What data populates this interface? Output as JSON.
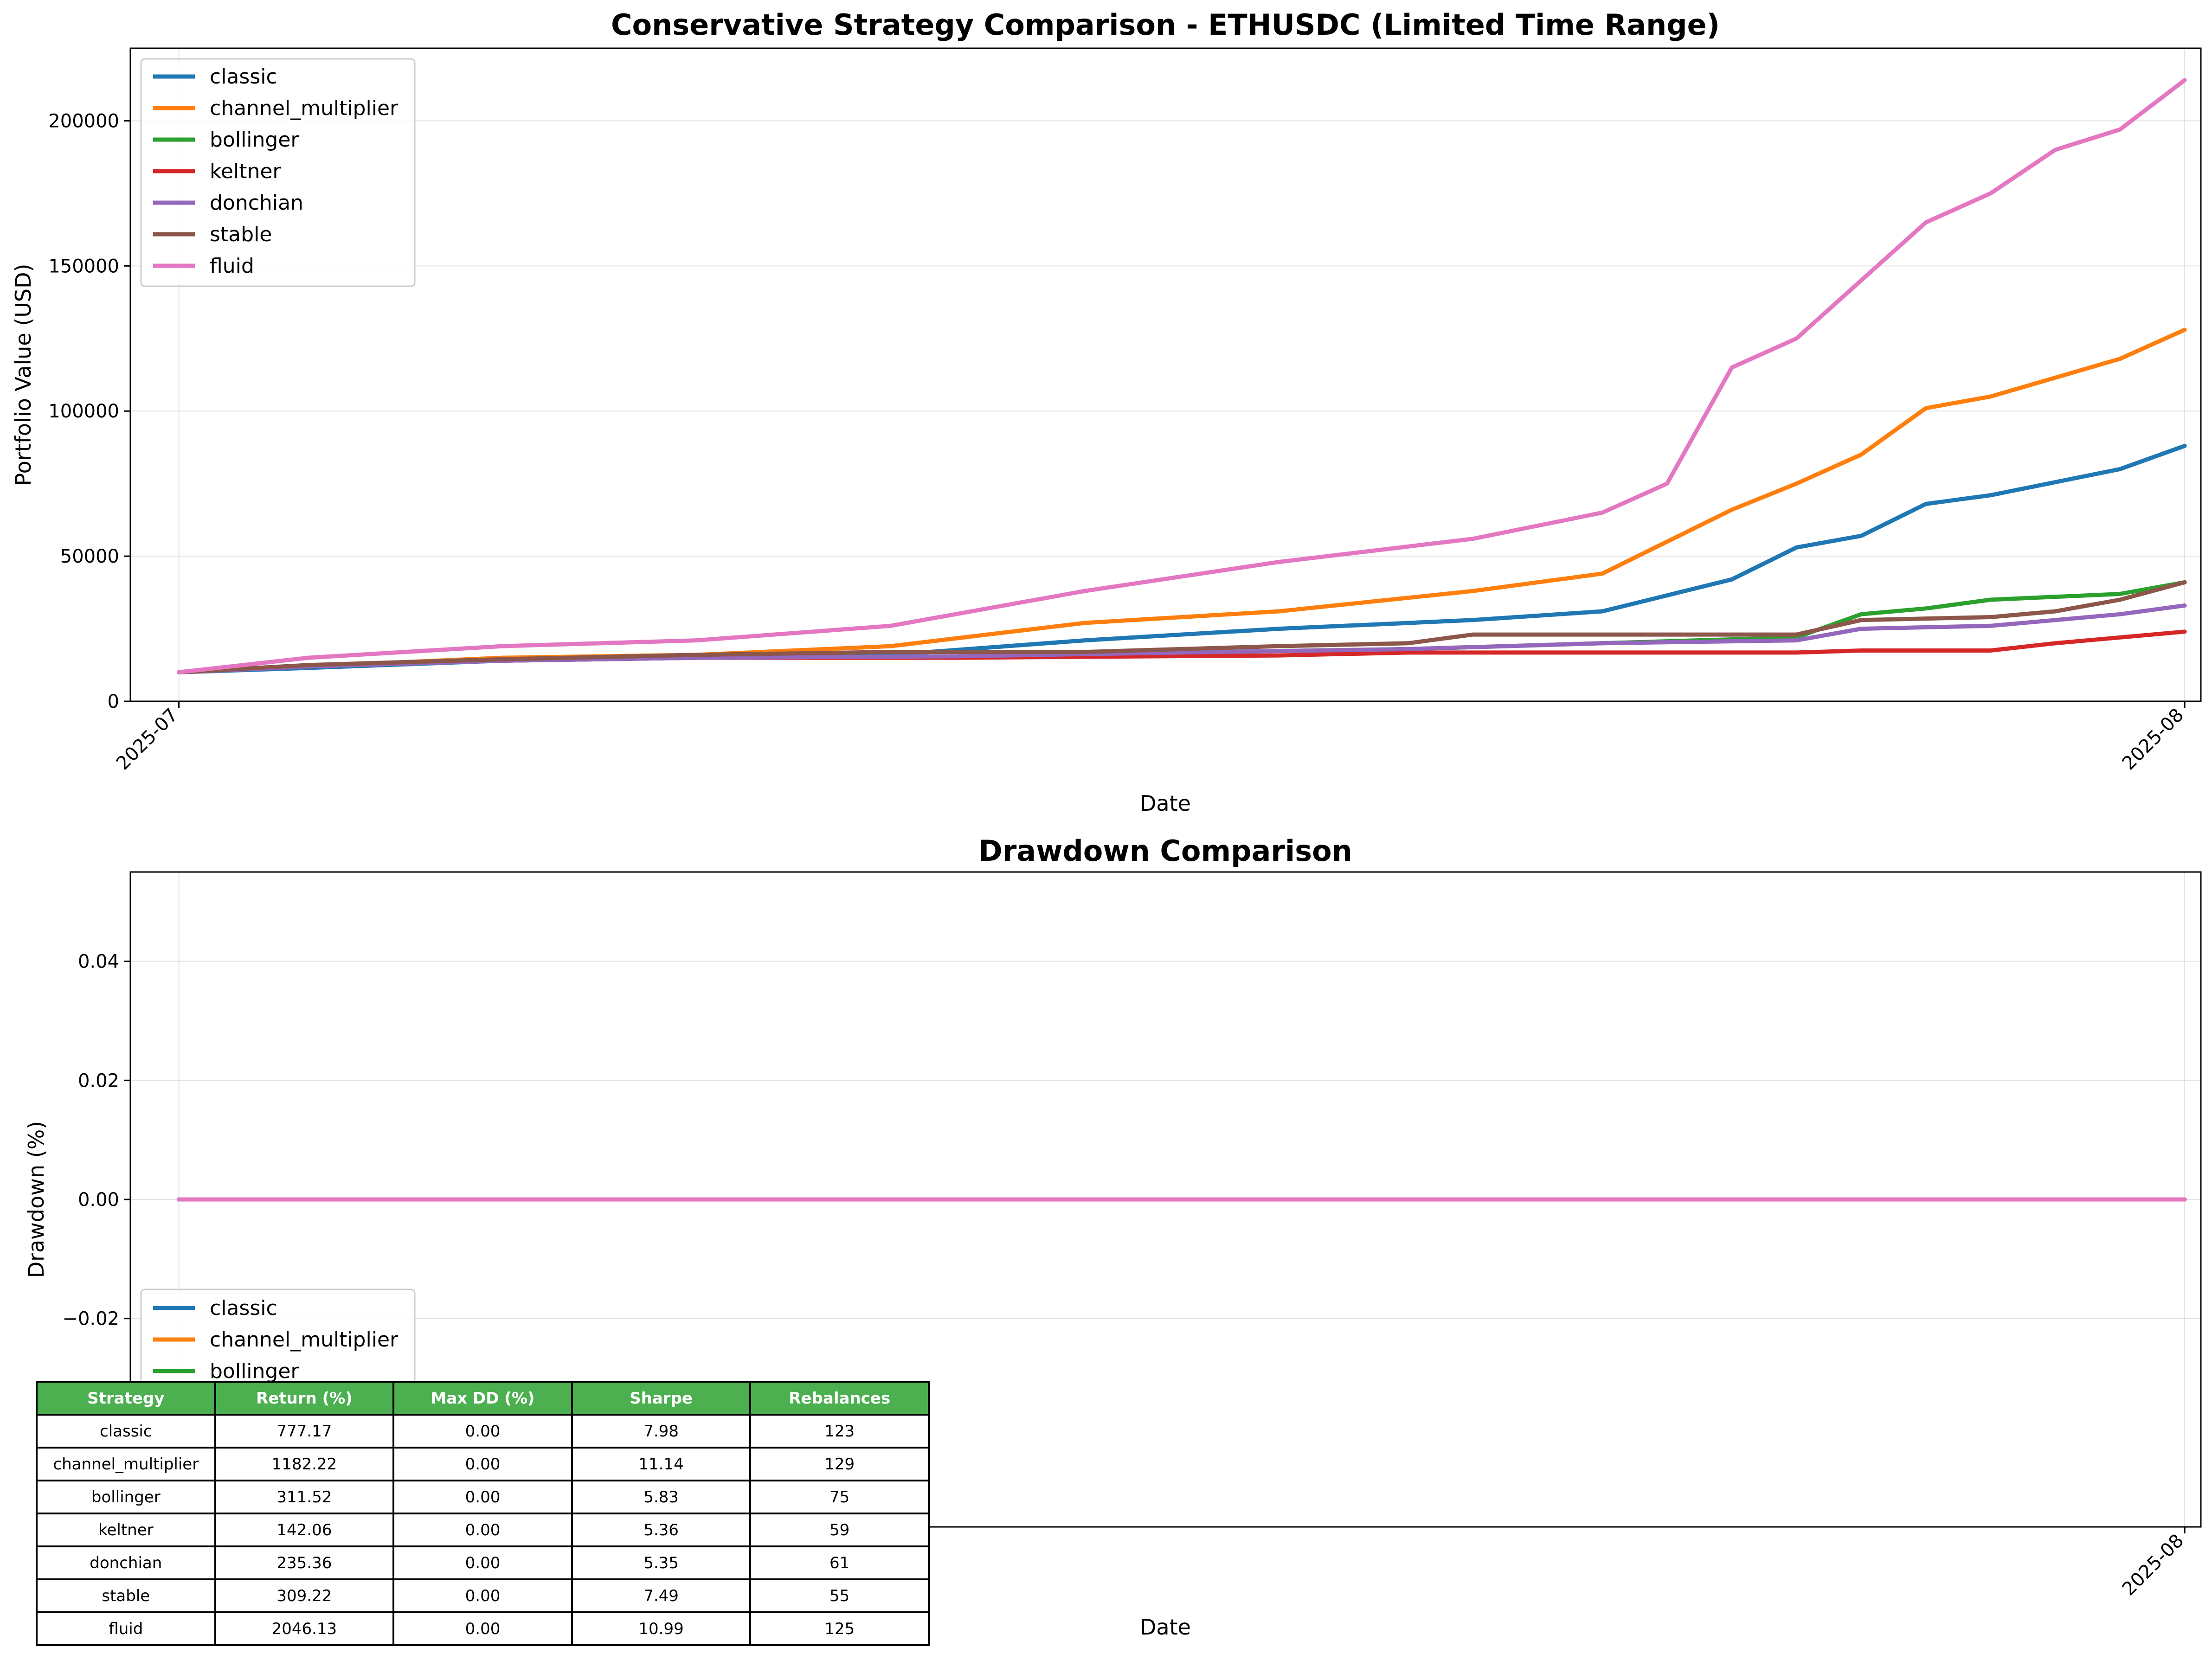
{
  "colors": {
    "classic": "#1f77b4",
    "channel_multiplier": "#ff7f0e",
    "bollinger": "#2ca02c",
    "keltner": "#d62728",
    "donchian": "#9467bd",
    "stable": "#8c564b",
    "fluid": "#e377c2",
    "table_header": "#4caf50"
  },
  "chart_data": [
    {
      "type": "line",
      "title": "Conservative Strategy Comparison - ETHUSDC (Limited Time Range)",
      "xlabel": "Date",
      "ylabel": "Portfolio Value (USD)",
      "xlim": [
        "2025-06-30T06:00",
        "2025-08-01T06:00"
      ],
      "ylim": [
        0,
        225000
      ],
      "x_ticks": [
        {
          "value": "2025-07-01",
          "label": "2025-07"
        },
        {
          "value": "2025-08-01",
          "label": "2025-08"
        }
      ],
      "y_ticks": [
        0,
        50000,
        100000,
        150000,
        200000
      ],
      "grid": true,
      "legend_position": "upper left",
      "series": [
        {
          "name": "classic",
          "points": [
            [
              "2025-07-01",
              10000
            ],
            [
              "2025-07-03",
              11500
            ],
            [
              "2025-07-06",
              14000
            ],
            [
              "2025-07-09",
              15000
            ],
            [
              "2025-07-12",
              16000
            ],
            [
              "2025-07-15",
              21000
            ],
            [
              "2025-07-18",
              25000
            ],
            [
              "2025-07-21",
              28000
            ],
            [
              "2025-07-23",
              31000
            ],
            [
              "2025-07-25",
              42000
            ],
            [
              "2025-07-26",
              53000
            ],
            [
              "2025-07-27",
              57000
            ],
            [
              "2025-07-28",
              68000
            ],
            [
              "2025-07-29",
              71000
            ],
            [
              "2025-07-31",
              80000
            ],
            [
              "2025-08-01",
              88000
            ]
          ]
        },
        {
          "name": "channel_multiplier",
          "points": [
            [
              "2025-07-01",
              10000
            ],
            [
              "2025-07-03",
              12000
            ],
            [
              "2025-07-06",
              15000
            ],
            [
              "2025-07-09",
              16000
            ],
            [
              "2025-07-12",
              19000
            ],
            [
              "2025-07-15",
              27000
            ],
            [
              "2025-07-18",
              31000
            ],
            [
              "2025-07-21",
              38000
            ],
            [
              "2025-07-23",
              44000
            ],
            [
              "2025-07-24",
              55000
            ],
            [
              "2025-07-25",
              66000
            ],
            [
              "2025-07-26",
              75000
            ],
            [
              "2025-07-27",
              85000
            ],
            [
              "2025-07-28",
              101000
            ],
            [
              "2025-07-29",
              105000
            ],
            [
              "2025-07-31",
              118000
            ],
            [
              "2025-08-01",
              128000
            ]
          ]
        },
        {
          "name": "bollinger",
          "points": [
            [
              "2025-07-01",
              10000
            ],
            [
              "2025-07-03",
              12000
            ],
            [
              "2025-07-06",
              14000
            ],
            [
              "2025-07-09",
              15000
            ],
            [
              "2025-07-13",
              15500
            ],
            [
              "2025-07-17",
              17000
            ],
            [
              "2025-07-20",
              18000
            ],
            [
              "2025-07-23",
              20000
            ],
            [
              "2025-07-26",
              22000
            ],
            [
              "2025-07-27",
              30000
            ],
            [
              "2025-07-28",
              32000
            ],
            [
              "2025-07-29",
              35000
            ],
            [
              "2025-07-31",
              37000
            ],
            [
              "2025-08-01",
              41000
            ]
          ]
        },
        {
          "name": "keltner",
          "points": [
            [
              "2025-07-01",
              10000
            ],
            [
              "2025-07-03",
              12000
            ],
            [
              "2025-07-06",
              14000
            ],
            [
              "2025-07-09",
              15000
            ],
            [
              "2025-07-13",
              15000
            ],
            [
              "2025-07-16",
              15500
            ],
            [
              "2025-07-18",
              15800
            ],
            [
              "2025-07-20",
              16800
            ],
            [
              "2025-07-26",
              16800
            ],
            [
              "2025-07-27",
              17500
            ],
            [
              "2025-07-29",
              17500
            ],
            [
              "2025-07-30",
              20000
            ],
            [
              "2025-07-31",
              22000
            ],
            [
              "2025-08-01",
              24000
            ]
          ]
        },
        {
          "name": "donchian",
          "points": [
            [
              "2025-07-01",
              10000
            ],
            [
              "2025-07-03",
              12000
            ],
            [
              "2025-07-06",
              14000
            ],
            [
              "2025-07-09",
              15000
            ],
            [
              "2025-07-13",
              15500
            ],
            [
              "2025-07-17",
              17000
            ],
            [
              "2025-07-20",
              18000
            ],
            [
              "2025-07-23",
              20000
            ],
            [
              "2025-07-26",
              21000
            ],
            [
              "2025-07-27",
              25000
            ],
            [
              "2025-07-29",
              26000
            ],
            [
              "2025-07-30",
              28000
            ],
            [
              "2025-07-31",
              30000
            ],
            [
              "2025-08-01",
              33000
            ]
          ]
        },
        {
          "name": "stable",
          "points": [
            [
              "2025-07-01",
              10000
            ],
            [
              "2025-07-03",
              12500
            ],
            [
              "2025-07-06",
              14500
            ],
            [
              "2025-07-09",
              16000
            ],
            [
              "2025-07-12",
              17000
            ],
            [
              "2025-07-15",
              17000
            ],
            [
              "2025-07-18",
              19000
            ],
            [
              "2025-07-20",
              20000
            ],
            [
              "2025-07-21",
              23000
            ],
            [
              "2025-07-26",
              23000
            ],
            [
              "2025-07-27",
              28000
            ],
            [
              "2025-07-29",
              29000
            ],
            [
              "2025-07-30",
              31000
            ],
            [
              "2025-07-31",
              35000
            ],
            [
              "2025-08-01",
              41000
            ]
          ]
        },
        {
          "name": "fluid",
          "points": [
            [
              "2025-07-01",
              10000
            ],
            [
              "2025-07-03",
              15000
            ],
            [
              "2025-07-06",
              19000
            ],
            [
              "2025-07-09",
              21000
            ],
            [
              "2025-07-12",
              26000
            ],
            [
              "2025-07-15",
              38000
            ],
            [
              "2025-07-18",
              48000
            ],
            [
              "2025-07-21",
              56000
            ],
            [
              "2025-07-23",
              65000
            ],
            [
              "2025-07-24",
              75000
            ],
            [
              "2025-07-25",
              115000
            ],
            [
              "2025-07-26",
              125000
            ],
            [
              "2025-07-27",
              145000
            ],
            [
              "2025-07-28",
              165000
            ],
            [
              "2025-07-29",
              175000
            ],
            [
              "2025-07-30",
              190000
            ],
            [
              "2025-07-31",
              197000
            ],
            [
              "2025-08-01",
              214000
            ]
          ]
        }
      ]
    },
    {
      "type": "line",
      "title": "Drawdown Comparison",
      "xlabel": "Date",
      "ylabel": "Drawdown (%)",
      "xlim": [
        "2025-06-30T06:00",
        "2025-08-01T06:00"
      ],
      "ylim": [
        -0.055,
        0.055
      ],
      "x_ticks": [
        {
          "value": "2025-08-01",
          "label": "2025-08"
        }
      ],
      "y_ticks": [
        -0.02,
        0.0,
        0.02,
        0.04
      ],
      "y_tick_labels": [
        "−0.02",
        "0.00",
        "0.02",
        "0.04"
      ],
      "grid": true,
      "legend_position": "lower left",
      "legend_visible": [
        "classic",
        "channel_multiplier",
        "bollinger"
      ],
      "series": [
        {
          "name": "classic",
          "points": [
            [
              "2025-07-01",
              0
            ],
            [
              "2025-08-01",
              0
            ]
          ]
        },
        {
          "name": "channel_multiplier",
          "points": [
            [
              "2025-07-01",
              0
            ],
            [
              "2025-08-01",
              0
            ]
          ]
        },
        {
          "name": "bollinger",
          "points": [
            [
              "2025-07-01",
              0
            ],
            [
              "2025-08-01",
              0
            ]
          ]
        },
        {
          "name": "keltner",
          "points": [
            [
              "2025-07-01",
              0
            ],
            [
              "2025-08-01",
              0
            ]
          ]
        },
        {
          "name": "donchian",
          "points": [
            [
              "2025-07-01",
              0
            ],
            [
              "2025-08-01",
              0
            ]
          ]
        },
        {
          "name": "stable",
          "points": [
            [
              "2025-07-01",
              0
            ],
            [
              "2025-08-01",
              0
            ]
          ]
        },
        {
          "name": "fluid",
          "points": [
            [
              "2025-07-01",
              0
            ],
            [
              "2025-08-01",
              0
            ]
          ]
        }
      ]
    },
    {
      "type": "table",
      "columns": [
        "Strategy",
        "Return (%)",
        "Max DD (%)",
        "Sharpe",
        "Rebalances"
      ],
      "rows": [
        [
          "classic",
          "777.17",
          "0.00",
          "7.98",
          "123"
        ],
        [
          "channel_multiplier",
          "1182.22",
          "0.00",
          "11.14",
          "129"
        ],
        [
          "bollinger",
          "311.52",
          "0.00",
          "5.83",
          "75"
        ],
        [
          "keltner",
          "142.06",
          "0.00",
          "5.36",
          "59"
        ],
        [
          "donchian",
          "235.36",
          "0.00",
          "5.35",
          "61"
        ],
        [
          "stable",
          "309.22",
          "0.00",
          "7.49",
          "55"
        ],
        [
          "fluid",
          "2046.13",
          "0.00",
          "10.99",
          "125"
        ]
      ]
    }
  ]
}
